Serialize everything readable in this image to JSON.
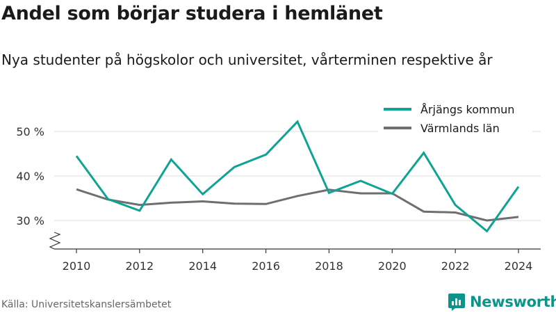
{
  "header": {
    "title": "Andel som börjar studera i hemlänet",
    "subtitle": "Nya studenter på högskolor och universitet, vårterminen respektive år"
  },
  "footer": {
    "source": "Källa: Universitetskanslersämbetet",
    "brand": "Newsworthy"
  },
  "colors": {
    "series_1": "#0fa394",
    "series_2": "#6e6e73",
    "grid": "#dddddd",
    "brand": "#0d9488"
  },
  "icons": {
    "brand_logo": "bar-chart-logo-icon",
    "axis_break": "axis-break-icon"
  },
  "chart_data": {
    "type": "line",
    "x": [
      2010,
      2011,
      2012,
      2013,
      2014,
      2015,
      2016,
      2017,
      2018,
      2019,
      2020,
      2021,
      2022,
      2023,
      2024
    ],
    "x_ticks": [
      2010,
      2012,
      2014,
      2016,
      2018,
      2020,
      2022,
      2024
    ],
    "x_tick_labels": [
      "2010",
      "2012",
      "2014",
      "2016",
      "2018",
      "2020",
      "2022",
      "2024"
    ],
    "y_ticks": [
      30,
      40,
      50
    ],
    "y_tick_labels": [
      "30 %",
      "40 %",
      "50 %"
    ],
    "ylim": [
      25,
      54
    ],
    "y_axis_break": true,
    "grid": true,
    "legend_position": "top-right",
    "series": [
      {
        "name": "Årjängs kommun",
        "values": [
          44.5,
          34.8,
          32.2,
          43.7,
          35.9,
          42.0,
          44.8,
          52.2,
          36.2,
          38.9,
          36.0,
          45.2,
          33.5,
          27.6,
          37.6
        ]
      },
      {
        "name": "Värmlands län",
        "values": [
          37.0,
          34.7,
          33.5,
          34.0,
          34.3,
          33.8,
          33.7,
          35.5,
          36.9,
          36.1,
          36.1,
          32.0,
          31.8,
          30.0,
          30.8
        ]
      }
    ]
  }
}
